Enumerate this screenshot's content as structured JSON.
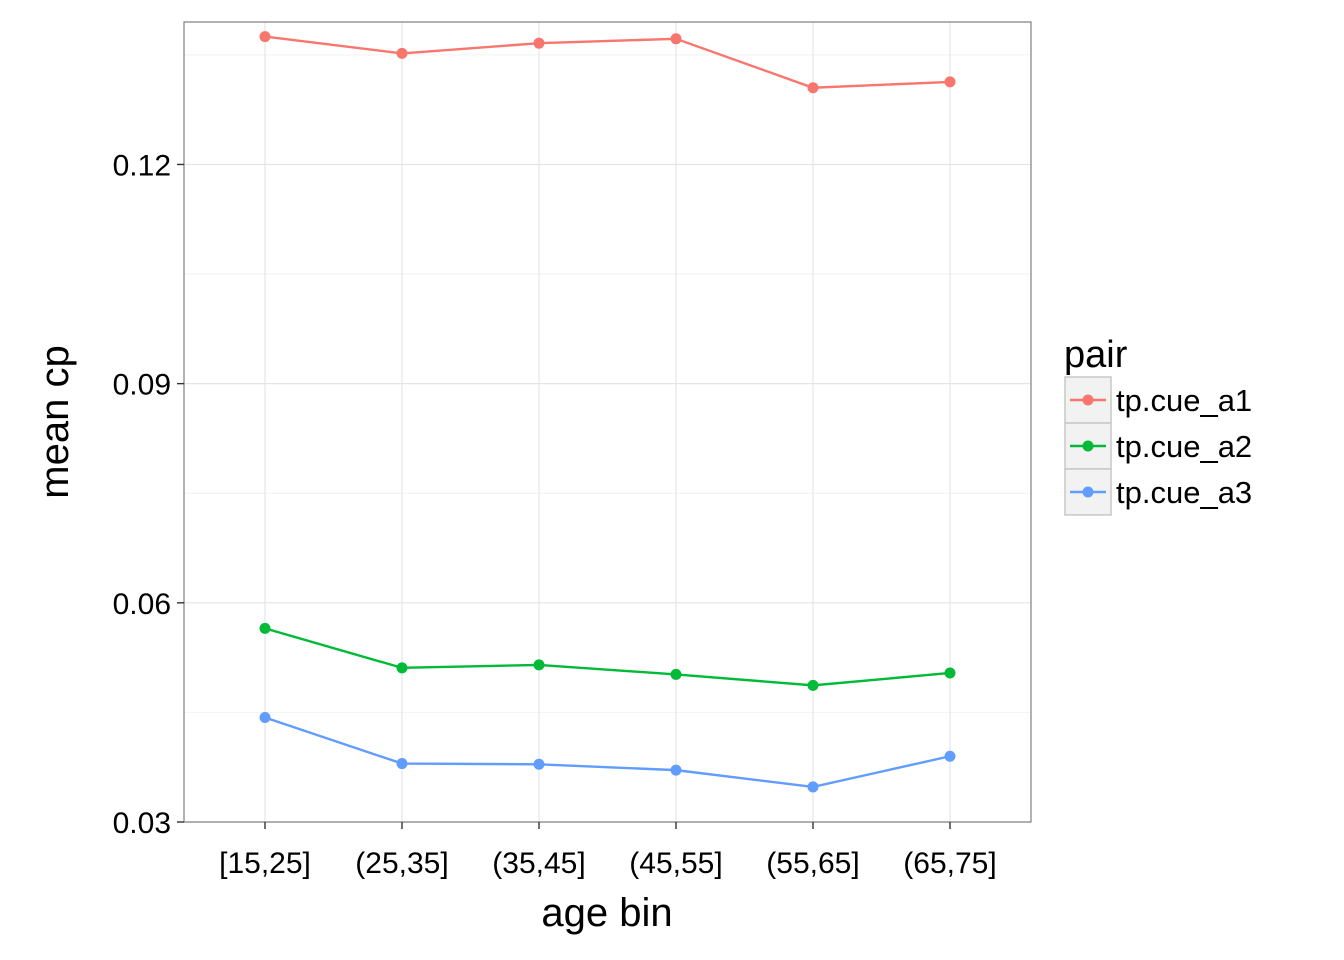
{
  "chart_data": {
    "type": "line",
    "title": "",
    "xlabel": "age bin",
    "ylabel": "mean cp",
    "categories": [
      "[15,25]",
      "(25,35]",
      "(35,45]",
      "(45,55]",
      "(55,65]",
      "(65,75]"
    ],
    "ylim": [
      0.03,
      0.1395
    ],
    "yticks": [
      0.03,
      0.06,
      0.09,
      0.12
    ],
    "ytick_labels": [
      "0.03",
      "0.06",
      "0.09",
      "0.12"
    ],
    "grid": true,
    "legend": {
      "title": "pair",
      "position": "right"
    },
    "series": [
      {
        "name": "tp.cue_a1",
        "color": "#F8766D",
        "values": [
          0.1375,
          0.1352,
          0.1366,
          0.1372,
          0.1305,
          0.1313
        ]
      },
      {
        "name": "tp.cue_a2",
        "color": "#00BA38",
        "values": [
          0.0565,
          0.0511,
          0.0515,
          0.0502,
          0.0487,
          0.0504
        ]
      },
      {
        "name": "tp.cue_a3",
        "color": "#619CFF",
        "values": [
          0.0443,
          0.038,
          0.0379,
          0.0371,
          0.0348,
          0.039
        ]
      }
    ]
  }
}
